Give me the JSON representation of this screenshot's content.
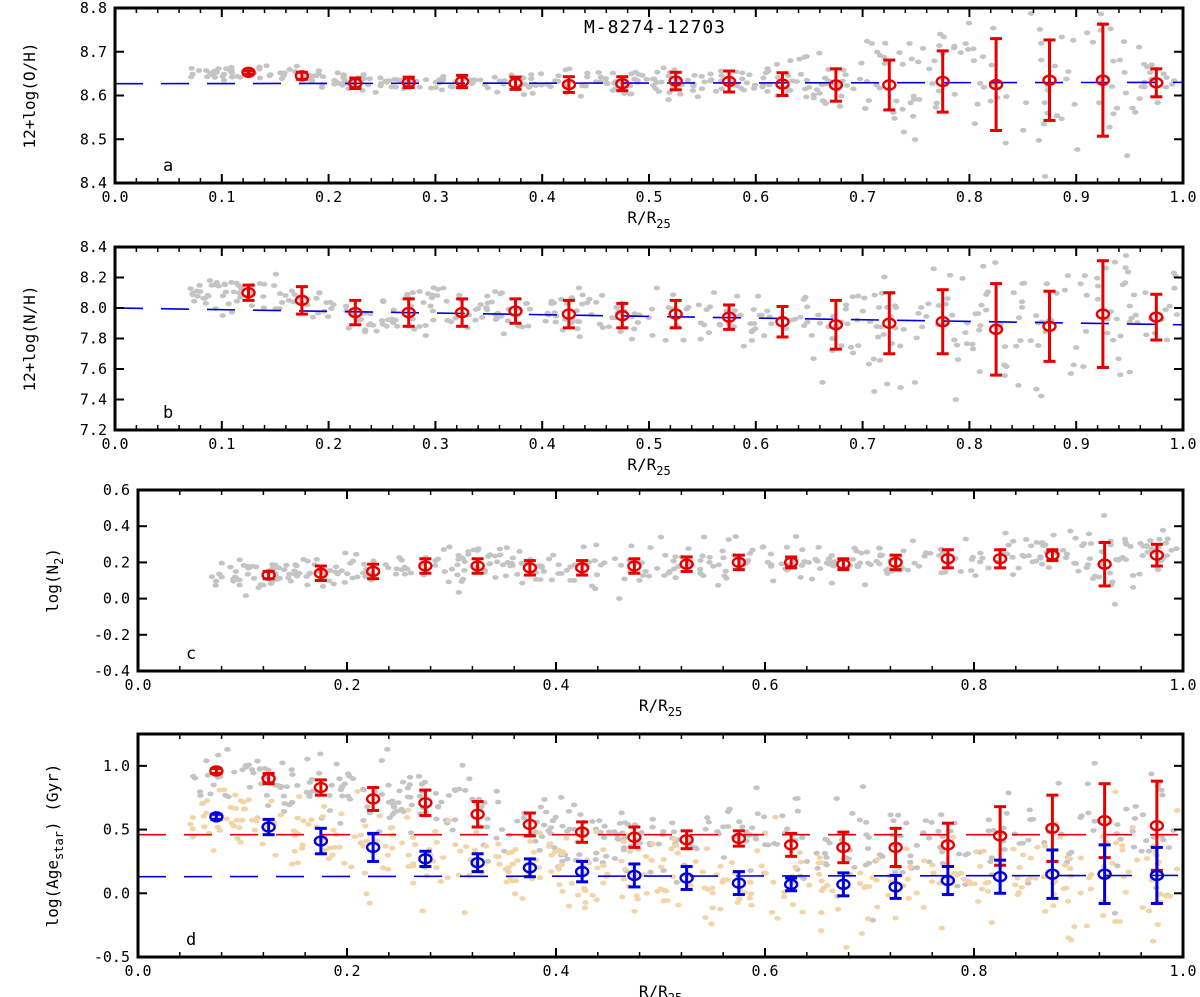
{
  "colors": {
    "gray_points": "#c4c4c4",
    "tan_points": "#f2d4a6",
    "red": "#e60000",
    "blue": "#0000dd"
  },
  "chart_data": [
    {
      "type": "scatter",
      "panel": "a",
      "title": "M-8274-12703",
      "xlabel": "R/R25",
      "ylabel": "12+log(O/H)",
      "xlim": [
        0.0,
        1.0
      ],
      "ylim": [
        8.4,
        8.8
      ],
      "xticks": [
        "0.0",
        "0.1",
        "0.2",
        "0.3",
        "0.4",
        "0.5",
        "0.6",
        "0.7",
        "0.8",
        "0.9",
        "1.0"
      ],
      "yticks": [
        "8.4",
        "8.5",
        "8.6",
        "8.7",
        "8.8"
      ],
      "grid": false,
      "fit_lines": [
        {
          "color": "blue",
          "style": "dashed",
          "x": [
            0.0,
            1.0
          ],
          "y": [
            8.627,
            8.63
          ]
        }
      ],
      "series": [
        {
          "color": "red",
          "marker": "open-circle",
          "x": [
            0.125,
            0.175,
            0.225,
            0.275,
            0.325,
            0.375,
            0.425,
            0.475,
            0.525,
            0.575,
            0.625,
            0.675,
            0.725,
            0.775,
            0.825,
            0.875,
            0.925,
            0.975
          ],
          "y": [
            8.653,
            8.645,
            8.628,
            8.63,
            8.632,
            8.628,
            8.625,
            8.627,
            8.633,
            8.632,
            8.626,
            8.624,
            8.624,
            8.632,
            8.625,
            8.635,
            8.635,
            8.629
          ],
          "err": [
            0.004,
            0.008,
            0.012,
            0.012,
            0.014,
            0.014,
            0.018,
            0.016,
            0.02,
            0.024,
            0.026,
            0.037,
            0.057,
            0.07,
            0.105,
            0.092,
            0.128,
            0.032
          ]
        }
      ]
    },
    {
      "type": "scatter",
      "panel": "b",
      "xlabel": "R/R25",
      "ylabel": "12+log(N/H)",
      "xlim": [
        0.0,
        1.0
      ],
      "ylim": [
        7.2,
        8.4
      ],
      "xticks": [
        "0.0",
        "0.1",
        "0.2",
        "0.3",
        "0.4",
        "0.5",
        "0.6",
        "0.7",
        "0.8",
        "0.9",
        "1.0"
      ],
      "yticks": [
        "7.2",
        "7.4",
        "7.6",
        "7.8",
        "8.0",
        "8.2",
        "8.4"
      ],
      "grid": false,
      "fit_lines": [
        {
          "color": "blue",
          "style": "dashed",
          "x": [
            0.0,
            1.0
          ],
          "y": [
            8.0,
            7.89
          ]
        }
      ],
      "series": [
        {
          "color": "red",
          "marker": "open-circle",
          "x": [
            0.125,
            0.175,
            0.225,
            0.275,
            0.325,
            0.375,
            0.425,
            0.475,
            0.525,
            0.575,
            0.625,
            0.675,
            0.725,
            0.775,
            0.825,
            0.875,
            0.925,
            0.975
          ],
          "y": [
            8.1,
            8.05,
            7.97,
            7.97,
            7.97,
            7.98,
            7.96,
            7.95,
            7.96,
            7.94,
            7.91,
            7.89,
            7.9,
            7.91,
            7.86,
            7.88,
            7.96,
            7.94
          ],
          "err": [
            0.05,
            0.09,
            0.08,
            0.09,
            0.09,
            0.08,
            0.09,
            0.08,
            0.09,
            0.08,
            0.1,
            0.16,
            0.2,
            0.21,
            0.3,
            0.23,
            0.35,
            0.15
          ]
        }
      ]
    },
    {
      "type": "scatter",
      "panel": "c",
      "xlabel": "R/R25",
      "ylabel": "log(N2)",
      "xlim": [
        0.0,
        1.0
      ],
      "ylim": [
        -0.4,
        0.6
      ],
      "xticks": [
        "0.0",
        "0.2",
        "0.4",
        "0.6",
        "0.8",
        "1.0"
      ],
      "yticks": [
        "-0.4",
        "-0.2",
        "0.0",
        "0.2",
        "0.4",
        "0.6"
      ],
      "grid": false,
      "series": [
        {
          "color": "red",
          "marker": "open-circle",
          "x": [
            0.125,
            0.175,
            0.225,
            0.275,
            0.325,
            0.375,
            0.425,
            0.475,
            0.525,
            0.575,
            0.625,
            0.675,
            0.725,
            0.775,
            0.825,
            0.875,
            0.925,
            0.975
          ],
          "y": [
            0.13,
            0.14,
            0.15,
            0.18,
            0.18,
            0.17,
            0.17,
            0.18,
            0.19,
            0.2,
            0.2,
            0.19,
            0.2,
            0.22,
            0.22,
            0.24,
            0.19,
            0.24
          ],
          "err": [
            0.02,
            0.04,
            0.04,
            0.04,
            0.04,
            0.04,
            0.04,
            0.04,
            0.04,
            0.04,
            0.03,
            0.03,
            0.04,
            0.05,
            0.05,
            0.03,
            0.12,
            0.06
          ]
        }
      ]
    },
    {
      "type": "scatter",
      "panel": "d",
      "xlabel": "R/R25",
      "ylabel": "log(Agestar) (Gyr)",
      "xlim": [
        0.0,
        1.0
      ],
      "ylim": [
        -0.5,
        1.25
      ],
      "xticks": [
        "0.0",
        "0.2",
        "0.4",
        "0.6",
        "0.8",
        "1.0"
      ],
      "yticks": [
        "-0.5",
        "0.0",
        "0.5",
        "1.0"
      ],
      "grid": false,
      "fit_lines": [
        {
          "color": "red",
          "style": "dashed",
          "x": [
            0.0,
            1.0
          ],
          "y": [
            0.46,
            0.46
          ]
        },
        {
          "color": "blue",
          "style": "dashed",
          "x": [
            0.0,
            1.0
          ],
          "y": [
            0.13,
            0.14
          ]
        }
      ],
      "series": [
        {
          "color": "red",
          "marker": "open-circle",
          "x": [
            0.075,
            0.125,
            0.175,
            0.225,
            0.275,
            0.325,
            0.375,
            0.425,
            0.475,
            0.525,
            0.575,
            0.625,
            0.675,
            0.725,
            0.775,
            0.825,
            0.875,
            0.925,
            0.975
          ],
          "y": [
            0.96,
            0.9,
            0.83,
            0.74,
            0.71,
            0.62,
            0.54,
            0.48,
            0.44,
            0.42,
            0.43,
            0.38,
            0.36,
            0.36,
            0.38,
            0.45,
            0.51,
            0.57,
            0.53
          ],
          "err": [
            0.02,
            0.04,
            0.06,
            0.09,
            0.1,
            0.1,
            0.09,
            0.08,
            0.08,
            0.07,
            0.06,
            0.09,
            0.12,
            0.15,
            0.17,
            0.23,
            0.26,
            0.29,
            0.35
          ]
        },
        {
          "color": "blue",
          "marker": "open-circle",
          "x": [
            0.075,
            0.125,
            0.175,
            0.225,
            0.275,
            0.325,
            0.375,
            0.425,
            0.475,
            0.525,
            0.575,
            0.625,
            0.675,
            0.725,
            0.775,
            0.825,
            0.875,
            0.925,
            0.975
          ],
          "y": [
            0.6,
            0.52,
            0.41,
            0.36,
            0.27,
            0.24,
            0.2,
            0.17,
            0.14,
            0.12,
            0.08,
            0.07,
            0.07,
            0.05,
            0.1,
            0.13,
            0.15,
            0.15,
            0.14
          ],
          "err": [
            0.02,
            0.06,
            0.1,
            0.11,
            0.06,
            0.07,
            0.07,
            0.08,
            0.09,
            0.09,
            0.09,
            0.05,
            0.09,
            0.09,
            0.11,
            0.13,
            0.19,
            0.23,
            0.22
          ]
        }
      ]
    }
  ]
}
